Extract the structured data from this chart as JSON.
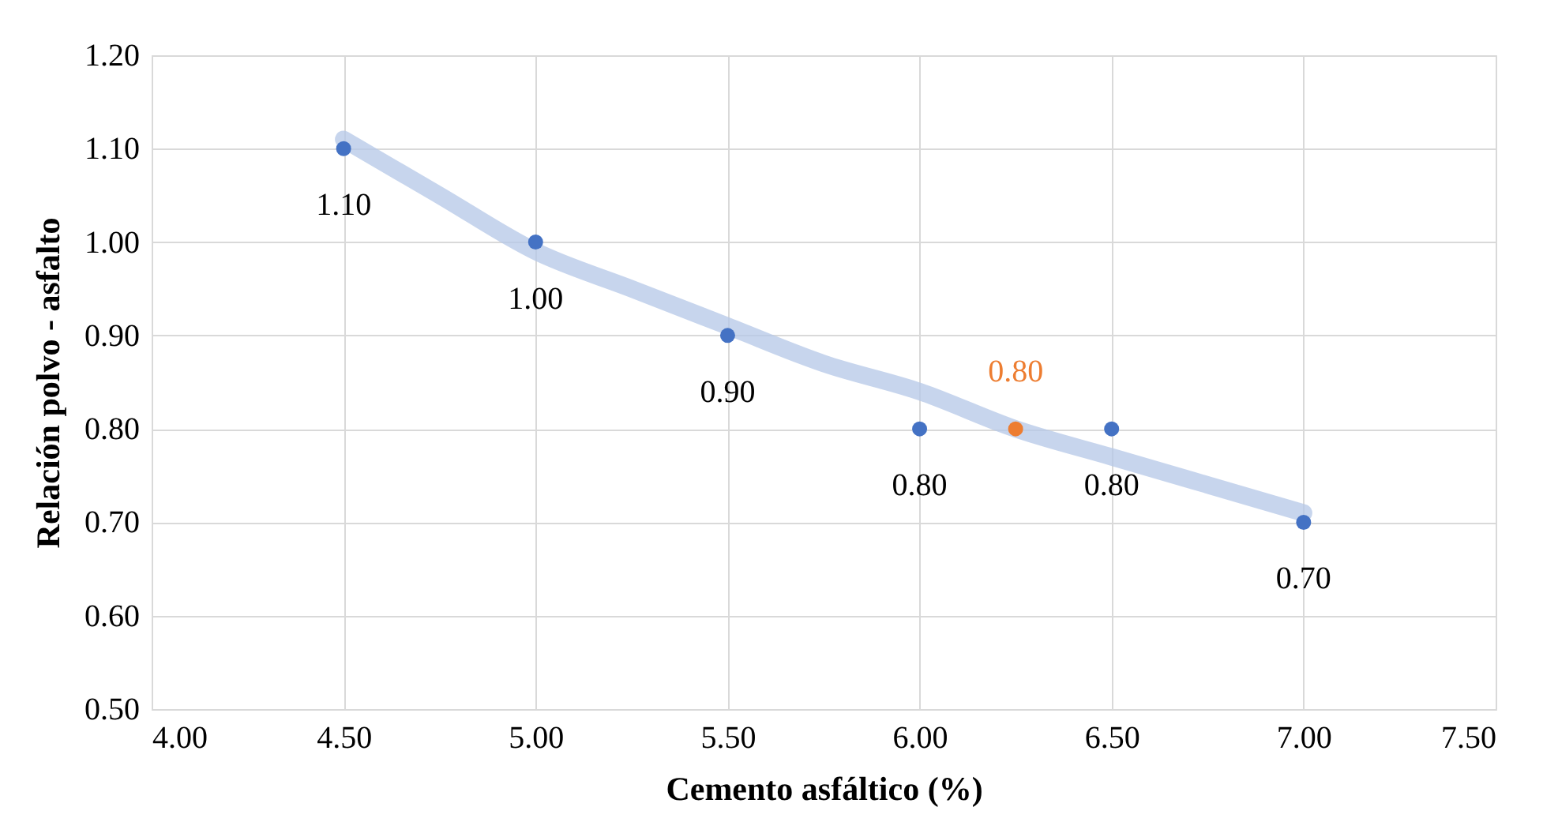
{
  "chart_data": {
    "type": "scatter",
    "xlabel": "Cemento asfáltico (%)",
    "ylabel": "Relación polvo - asfalto",
    "xlim": [
      4.0,
      7.5
    ],
    "xticks": [
      {
        "value": 4.0,
        "label": "4.00"
      },
      {
        "value": 4.5,
        "label": "4.50"
      },
      {
        "value": 5.0,
        "label": "5.00"
      },
      {
        "value": 5.5,
        "label": "5.50"
      },
      {
        "value": 6.0,
        "label": "6.00"
      },
      {
        "value": 6.5,
        "label": "6.50"
      },
      {
        "value": 7.0,
        "label": "7.00"
      },
      {
        "value": 7.5,
        "label": "7.50"
      }
    ],
    "ylim": [
      0.5,
      1.2
    ],
    "yticks": [
      {
        "value": 0.5,
        "label": "0.50"
      },
      {
        "value": 0.6,
        "label": "0.60"
      },
      {
        "value": 0.7,
        "label": "0.70"
      },
      {
        "value": 0.8,
        "label": "0.80"
      },
      {
        "value": 0.9,
        "label": "0.90"
      },
      {
        "value": 1.0,
        "label": "1.00"
      },
      {
        "value": 1.1,
        "label": "1.10"
      },
      {
        "value": 1.2,
        "label": "1.20"
      }
    ],
    "grid": true,
    "series": [
      {
        "type": "line",
        "color": "#b4c7e7",
        "x": [
          4.5,
          4.75,
          5.0,
          5.25,
          5.5,
          5.75,
          6.0,
          6.25,
          6.5,
          6.75,
          7.0
        ],
        "values": [
          1.11,
          1.05,
          0.99,
          0.95,
          0.91,
          0.87,
          0.84,
          0.8,
          0.77,
          0.74,
          0.71
        ]
      },
      {
        "type": "scatter",
        "color": "#4472c4",
        "marker": "circle",
        "x": [
          4.5,
          5.0,
          5.5,
          6.0,
          6.5,
          7.0
        ],
        "values": [
          1.1,
          1.0,
          0.9,
          0.8,
          0.8,
          0.7
        ],
        "value_labels": [
          "1.10",
          "1.00",
          "0.90",
          "0.80",
          "0.80",
          "0.70"
        ]
      },
      {
        "type": "scatter",
        "color": "#ed7d31",
        "marker": "circle",
        "x": [
          6.25
        ],
        "values": [
          0.8
        ],
        "value_labels": [
          "0.80"
        ]
      }
    ]
  }
}
